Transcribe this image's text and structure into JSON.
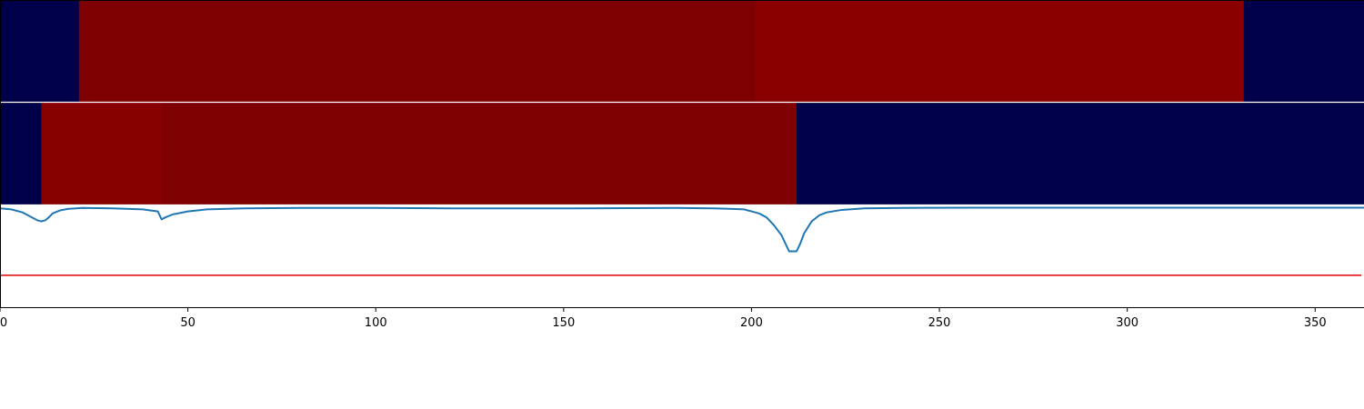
{
  "chart_data": {
    "type": "heatmap",
    "xlim": [
      0,
      363
    ],
    "x_ticks": [
      0,
      50,
      100,
      150,
      200,
      250,
      300,
      350
    ],
    "x_tick_labels": [
      "0",
      "50",
      "100",
      "150",
      "200",
      "250",
      "300",
      "350"
    ],
    "grid": false,
    "legend": "none",
    "colors": {
      "background_segment": "#00004a",
      "segment_dark_red": "#7f0000",
      "segment_red": "#8a0000",
      "line": "#1f77b4",
      "threshold": "#e00000",
      "separator": "#ffffff",
      "axis": "#000000"
    },
    "tracks": [
      {
        "row": 0,
        "segments": [
          {
            "start": 0,
            "end": 21,
            "color": "#00004a"
          },
          {
            "start": 21,
            "end": 201,
            "color": "#7f0000"
          },
          {
            "start": 201,
            "end": 331,
            "color": "#8a0000"
          },
          {
            "start": 331,
            "end": 363,
            "color": "#00004a"
          }
        ]
      },
      {
        "row": 1,
        "segments": [
          {
            "start": 0,
            "end": 11,
            "color": "#00004a"
          },
          {
            "start": 11,
            "end": 43,
            "color": "#880000"
          },
          {
            "start": 43,
            "end": 212,
            "color": "#7f0000"
          },
          {
            "start": 212,
            "end": 363,
            "color": "#00004a"
          }
        ]
      }
    ],
    "line_panel": {
      "ylim": [
        -1.0,
        0.02
      ],
      "threshold": -0.68,
      "series": {
        "x": [
          0,
          3,
          6,
          8,
          10,
          11,
          12,
          13,
          14,
          16,
          18,
          22,
          30,
          38,
          42,
          43,
          44,
          46,
          50,
          55,
          65,
          80,
          100,
          120,
          150,
          180,
          190,
          195,
          198,
          200,
          202,
          204,
          206,
          208,
          210,
          211,
          212,
          213,
          214,
          216,
          218,
          220,
          224,
          230,
          240,
          260,
          300,
          340,
          363
        ],
        "y": [
          -0.01,
          -0.02,
          -0.05,
          -0.09,
          -0.13,
          -0.14,
          -0.13,
          -0.1,
          -0.06,
          -0.03,
          -0.015,
          -0.005,
          -0.01,
          -0.02,
          -0.04,
          -0.12,
          -0.1,
          -0.07,
          -0.04,
          -0.02,
          -0.01,
          -0.005,
          -0.005,
          -0.01,
          -0.01,
          -0.005,
          -0.01,
          -0.015,
          -0.02,
          -0.04,
          -0.06,
          -0.1,
          -0.18,
          -0.28,
          -0.44,
          -0.44,
          -0.44,
          -0.36,
          -0.26,
          -0.14,
          -0.08,
          -0.05,
          -0.025,
          -0.01,
          -0.005,
          -0.003,
          -0.003,
          -0.003,
          -0.003
        ]
      }
    }
  }
}
